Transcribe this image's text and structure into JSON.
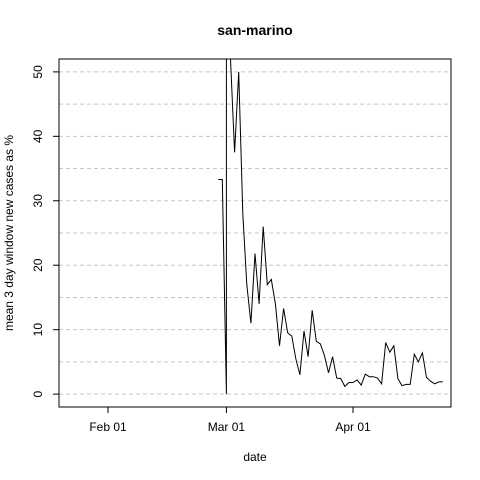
{
  "chart_data": {
    "type": "line",
    "title": "san-marino",
    "xlabel": "date",
    "ylabel": "mean  3  day window new cases as %",
    "x_ticks": [
      "Feb 01",
      "Mar 01",
      "Apr 01"
    ],
    "y_ticks": [
      0,
      10,
      20,
      30,
      40,
      50
    ],
    "xlim": [
      "2020-01-20",
      "2020-04-25"
    ],
    "ylim": [
      -2,
      52
    ],
    "grid": "horizontal dashed at major and minor ticks",
    "series": [
      {
        "x": [
          "2020-02-28",
          "2020-02-29",
          "2020-03-01",
          "2020-03-01",
          "2020-03-02",
          "2020-03-03",
          "2020-03-04",
          "2020-03-05",
          "2020-03-06",
          "2020-03-07",
          "2020-03-08",
          "2020-03-09",
          "2020-03-10",
          "2020-03-11",
          "2020-03-12",
          "2020-03-13",
          "2020-03-14",
          "2020-03-15",
          "2020-03-16",
          "2020-03-17",
          "2020-03-18",
          "2020-03-19",
          "2020-03-20",
          "2020-03-21",
          "2020-03-22",
          "2020-03-23",
          "2020-03-24",
          "2020-03-25",
          "2020-03-26",
          "2020-03-27",
          "2020-03-28",
          "2020-03-29",
          "2020-03-30",
          "2020-03-31",
          "2020-04-01",
          "2020-04-02",
          "2020-04-03",
          "2020-04-04",
          "2020-04-05",
          "2020-04-06",
          "2020-04-07",
          "2020-04-08",
          "2020-04-09",
          "2020-04-10",
          "2020-04-11",
          "2020-04-12",
          "2020-04-13",
          "2020-04-14",
          "2020-04-15",
          "2020-04-16",
          "2020-04-17",
          "2020-04-18",
          "2020-04-19",
          "2020-04-20",
          "2020-04-21",
          "2020-04-22",
          "2020-04-23"
        ],
        "y": [
          33.3,
          33.3,
          0,
          52,
          52,
          37.5,
          50,
          28,
          17,
          11,
          21.8,
          14,
          26,
          17,
          17.8,
          14,
          7.5,
          13.3,
          9.5,
          9,
          5.5,
          3,
          9.8,
          5.8,
          13,
          8.2,
          7.8,
          6,
          3.3,
          5.8,
          2.5,
          2.4,
          1.2,
          1.8,
          1.8,
          2.2,
          1.4,
          3.1,
          2.7,
          2.7,
          2.5,
          1.6,
          8,
          6.5,
          7.5,
          2.4,
          1.3,
          1.5,
          1.5,
          6.2,
          5,
          6.4,
          2.6,
          2,
          1.6,
          1.9,
          1.9
        ]
      }
    ]
  }
}
